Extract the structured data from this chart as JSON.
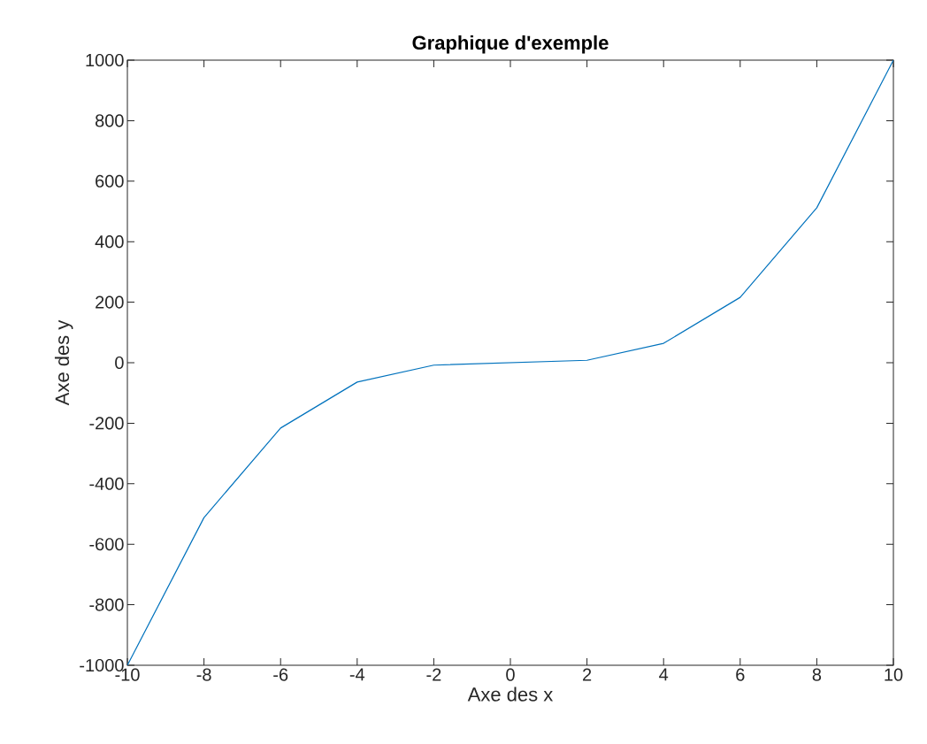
{
  "chart_data": {
    "type": "line",
    "title": "Graphique d'exemple",
    "xlabel": "Axe des x",
    "ylabel": "Axe des y",
    "x": [
      -10,
      -8,
      -6,
      -4,
      -2,
      0,
      2,
      4,
      6,
      8,
      10
    ],
    "values": [
      -1000,
      -512,
      -216,
      -64,
      -8,
      0,
      8,
      64,
      216,
      512,
      1000
    ],
    "color": "#0072bd",
    "xlim": [
      -10,
      10
    ],
    "ylim": [
      -1000,
      1000
    ],
    "xticks": [
      -10,
      -8,
      -6,
      -4,
      -2,
      0,
      2,
      4,
      6,
      8,
      10
    ],
    "yticks": [
      -1000,
      -800,
      -600,
      -400,
      -200,
      0,
      200,
      400,
      600,
      800,
      1000
    ]
  }
}
